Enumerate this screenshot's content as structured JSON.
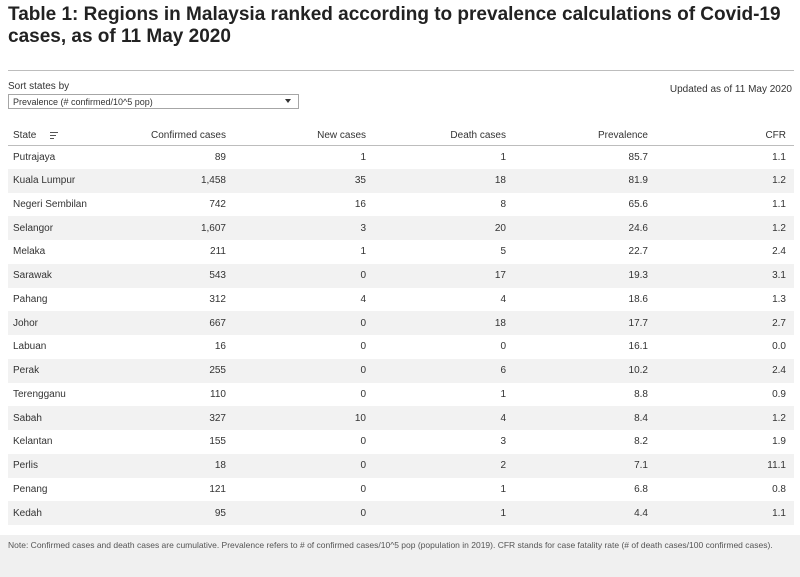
{
  "title": "Table 1:  Regions in Malaysia ranked according to prevalence calculations of Covid-19 cases, as of 11 May 2020",
  "controls": {
    "sort_label": "Sort states by",
    "sort_selected": "Prevalence (# confirmed/10^5 pop)"
  },
  "updated": "Updated as of 11 May 2020",
  "chart_data": {
    "type": "table",
    "columns": [
      "State",
      "Confirmed cases",
      "New cases",
      "Death cases",
      "Prevalence",
      "CFR"
    ],
    "rows": [
      {
        "state": "Putrajaya",
        "confirmed": "89",
        "new": "1",
        "deaths": "1",
        "prevalence": "85.7",
        "cfr": "1.1"
      },
      {
        "state": "Kuala Lumpur",
        "confirmed": "1,458",
        "new": "35",
        "deaths": "18",
        "prevalence": "81.9",
        "cfr": "1.2"
      },
      {
        "state": "Negeri Sembilan",
        "confirmed": "742",
        "new": "16",
        "deaths": "8",
        "prevalence": "65.6",
        "cfr": "1.1"
      },
      {
        "state": "Selangor",
        "confirmed": "1,607",
        "new": "3",
        "deaths": "20",
        "prevalence": "24.6",
        "cfr": "1.2"
      },
      {
        "state": "Melaka",
        "confirmed": "211",
        "new": "1",
        "deaths": "5",
        "prevalence": "22.7",
        "cfr": "2.4"
      },
      {
        "state": "Sarawak",
        "confirmed": "543",
        "new": "0",
        "deaths": "17",
        "prevalence": "19.3",
        "cfr": "3.1"
      },
      {
        "state": "Pahang",
        "confirmed": "312",
        "new": "4",
        "deaths": "4",
        "prevalence": "18.6",
        "cfr": "1.3"
      },
      {
        "state": "Johor",
        "confirmed": "667",
        "new": "0",
        "deaths": "18",
        "prevalence": "17.7",
        "cfr": "2.7"
      },
      {
        "state": "Labuan",
        "confirmed": "16",
        "new": "0",
        "deaths": "0",
        "prevalence": "16.1",
        "cfr": "0.0"
      },
      {
        "state": "Perak",
        "confirmed": "255",
        "new": "0",
        "deaths": "6",
        "prevalence": "10.2",
        "cfr": "2.4"
      },
      {
        "state": "Terengganu",
        "confirmed": "110",
        "new": "0",
        "deaths": "1",
        "prevalence": "8.8",
        "cfr": "0.9"
      },
      {
        "state": "Sabah",
        "confirmed": "327",
        "new": "10",
        "deaths": "4",
        "prevalence": "8.4",
        "cfr": "1.2"
      },
      {
        "state": "Kelantan",
        "confirmed": "155",
        "new": "0",
        "deaths": "3",
        "prevalence": "8.2",
        "cfr": "1.9"
      },
      {
        "state": "Perlis",
        "confirmed": "18",
        "new": "0",
        "deaths": "2",
        "prevalence": "7.1",
        "cfr": "11.1"
      },
      {
        "state": "Penang",
        "confirmed": "121",
        "new": "0",
        "deaths": "1",
        "prevalence": "6.8",
        "cfr": "0.8"
      },
      {
        "state": "Kedah",
        "confirmed": "95",
        "new": "0",
        "deaths": "1",
        "prevalence": "4.4",
        "cfr": "1.1"
      }
    ]
  },
  "note": "Note: Confirmed cases and death cases are cumulative. Prevalence refers to # of confirmed cases/10^5 pop (population in 2019). CFR stands for case fatality rate (# of death cases/100 confirmed cases)."
}
